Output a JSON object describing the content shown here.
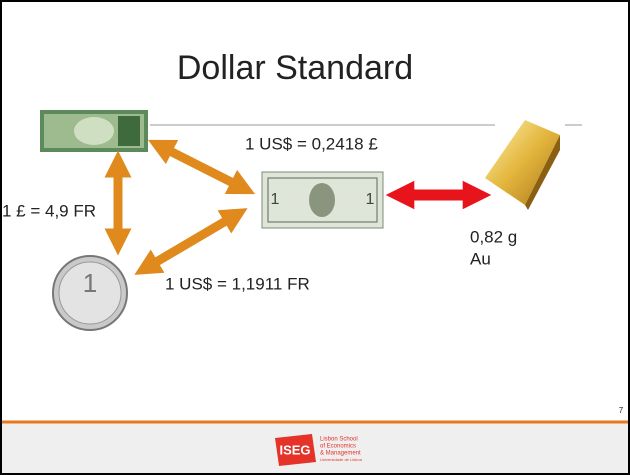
{
  "slide": {
    "title": "Dollar Standard",
    "labels": {
      "usd_gbp": "1 US$ = 0,2418 £",
      "gbp_fr": "1 £ = 4,9 FR",
      "usd_fr": "1 US$ = 1,1911 FR",
      "gold_amount": "0,82 g",
      "gold_symbol": "Au"
    },
    "page_number": "7",
    "footer": {
      "logo": "ISEG",
      "school_lines": [
        "Lisbon School",
        "of Economics",
        "& Management"
      ],
      "university": "Universidade de Lisboa"
    }
  }
}
